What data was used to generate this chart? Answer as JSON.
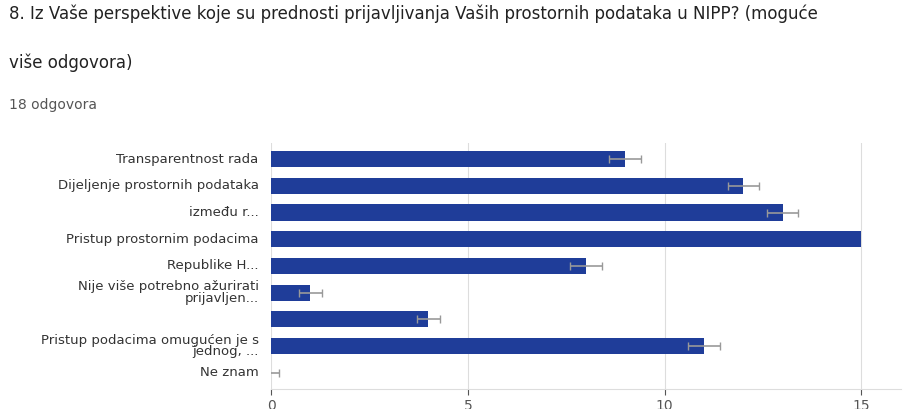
{
  "title_line1": "8. Iz Vaše perspektive koje su prednosti prijavljivanja Vaših prostornih podataka u NIPP? (moguće",
  "title_line2": "više odgovora)",
  "subtitle": "18 odgovora",
  "bars": [
    {
      "y": 8,
      "label_top": "Transparentnost rada",
      "label_bot": "",
      "value": 9,
      "error": 0.4
    },
    {
      "y": 7,
      "label_top": "Dijeljenje prostornih podataka",
      "label_bot": "",
      "value": 12,
      "error": 0.4
    },
    {
      "y": 6,
      "label_top": "između r...",
      "label_bot": "",
      "value": 13,
      "error": 0.4
    },
    {
      "y": 5,
      "label_top": "Pristup prostornim podacima",
      "label_bot": "",
      "value": 15,
      "error": 0
    },
    {
      "y": 4,
      "label_top": "Republike H...",
      "label_bot": "",
      "value": 8,
      "error": 0.4
    },
    {
      "y": 3,
      "label_top": "Nije više potrebno ažurirati",
      "label_bot": "prijavljen...",
      "value": 1,
      "error": 0.3
    },
    {
      "y": 2,
      "label_top": "",
      "label_bot": "",
      "value": 4,
      "error": 0.3
    },
    {
      "y": 1,
      "label_top": "Pristup podacima omugućen je s",
      "label_bot": "jednog, ...",
      "value": 11,
      "error": 0.4
    },
    {
      "y": 0,
      "label_top": "Ne znam",
      "label_bot": "",
      "value": 0,
      "error": 0.2
    }
  ],
  "bar_color": "#1f3d99",
  "error_color": "#999999",
  "xlim": [
    0,
    16
  ],
  "xticks": [
    0,
    5,
    10,
    15
  ],
  "background_color": "#ffffff",
  "plot_bg_color": "#ffffff",
  "title_fontsize": 12,
  "subtitle_fontsize": 10,
  "label_fontsize": 9.5,
  "tick_fontsize": 10
}
